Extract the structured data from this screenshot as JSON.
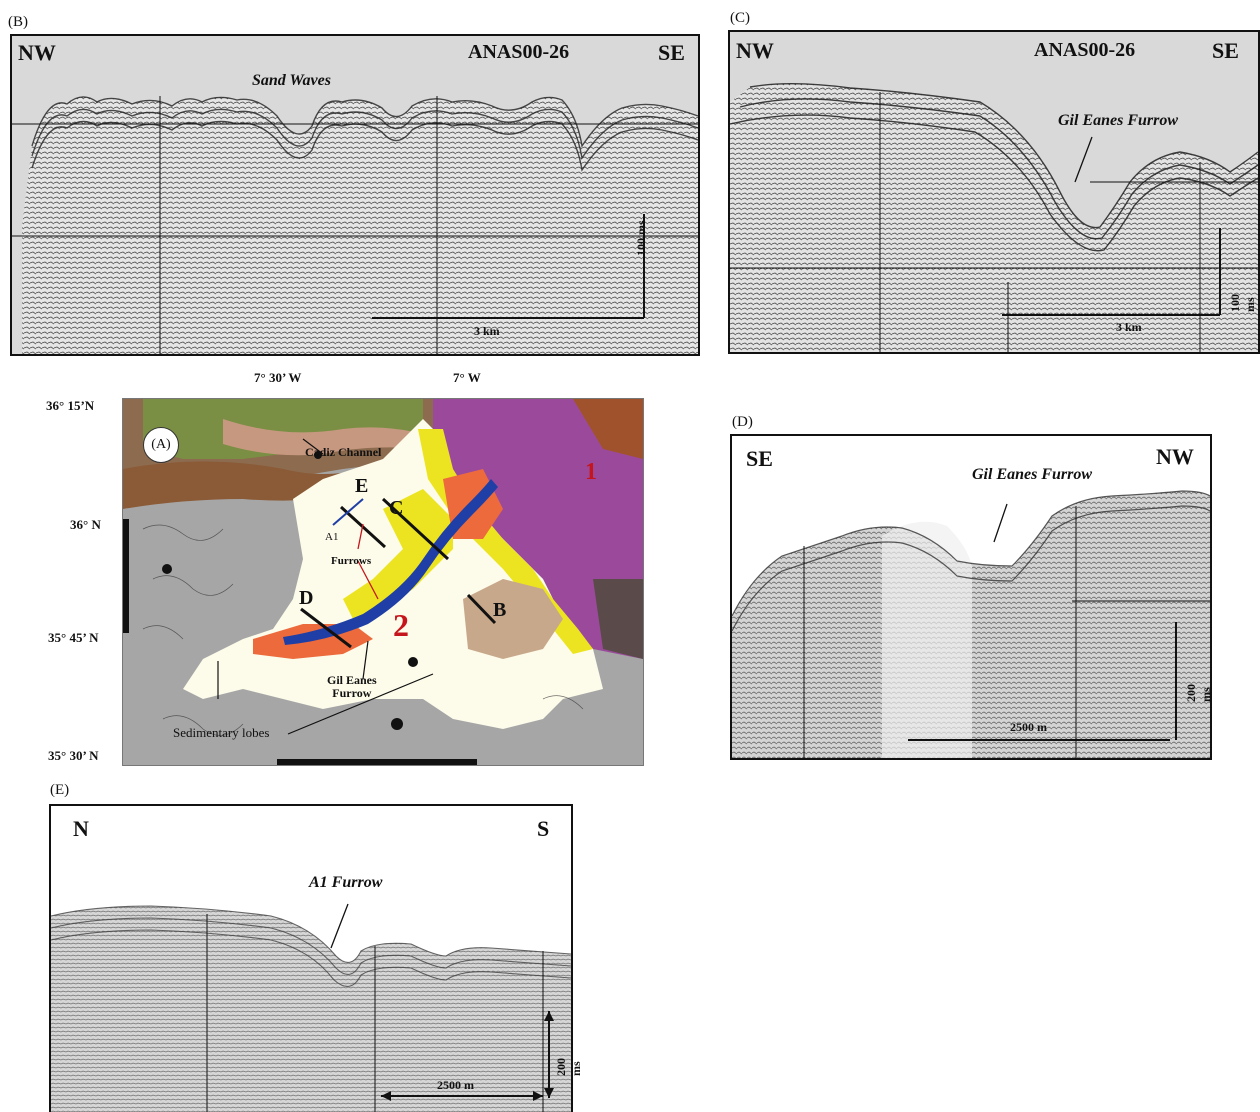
{
  "panels": {
    "B": {
      "label": "(B)",
      "left_dir": "NW",
      "right_dir": "SE",
      "line_id": "ANAS00-26",
      "annotation": "Sand Waves",
      "scale_h": "3 km",
      "scale_v": "100 ms"
    },
    "C": {
      "label": "(C)",
      "left_dir": "NW",
      "right_dir": "SE",
      "line_id": "ANAS00-26",
      "annotation": "Gil Eanes Furrow",
      "scale_h": "3 km",
      "scale_v": "100 ms"
    },
    "D": {
      "label": "(D)",
      "left_dir": "SE",
      "right_dir": "NW",
      "annotation": "Gil Eanes Furrow",
      "scale_h": "2500 m",
      "scale_v": "200 ms"
    },
    "E": {
      "label": "(E)",
      "left_dir": "N",
      "right_dir": "S",
      "annotation": "A1 Furrow",
      "scale_h": "2500 m",
      "scale_v": "200 ms"
    }
  },
  "map": {
    "label": "(A)",
    "lon_ticks": [
      "7° 30’ W",
      "7° W"
    ],
    "lat_ticks": [
      "36° 15’N",
      "36° N",
      "35° 45’ N",
      "35° 30’ N"
    ],
    "features": {
      "cadiz_channel": "Cadiz Channel",
      "a1": "A1",
      "furrows": "Furrows",
      "gil_eanes_furrow": "Gil Eanes\nFurrow",
      "sedimentary_lobes": "Sedimentary lobes",
      "zone_1": "1",
      "zone_2": "2"
    },
    "section_letters": [
      "E",
      "C",
      "D",
      "B"
    ],
    "colors": {
      "contourite_sheet": "#fdfbe9",
      "furrow": "#1f3fa6",
      "sand_yellow": "#ece420",
      "orange_drift": "#ec6a3c",
      "magenta_complex": "#9b4a9b",
      "grey_abyssal": "#a6a6a6",
      "brown_channel": "#8b5a36",
      "tan_ridge": "#c7a88a",
      "marker_red": "#c4161c"
    }
  }
}
